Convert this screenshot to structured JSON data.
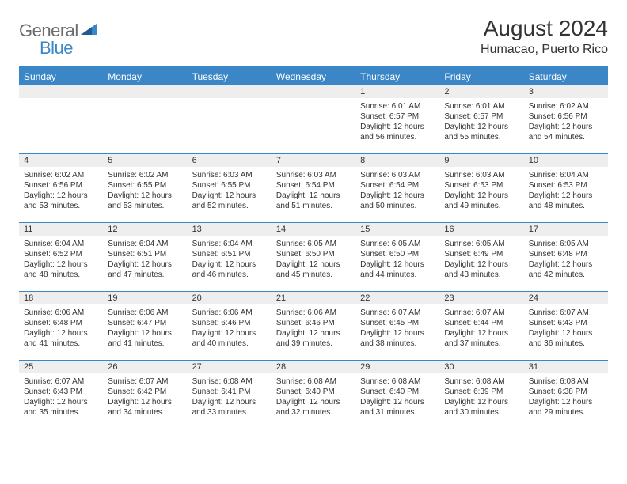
{
  "logo": {
    "text1": "General",
    "text2": "Blue"
  },
  "title": "August 2024",
  "location": "Humacao, Puerto Rico",
  "colors": {
    "accent": "#3b86c6",
    "header_text": "#ffffff",
    "daynum_bg": "#eeeeee",
    "text": "#333333",
    "logo_gray": "#6c6c6c",
    "background": "#ffffff"
  },
  "weekdays": [
    "Sunday",
    "Monday",
    "Tuesday",
    "Wednesday",
    "Thursday",
    "Friday",
    "Saturday"
  ],
  "weeks": [
    [
      {
        "blank": true
      },
      {
        "blank": true
      },
      {
        "blank": true
      },
      {
        "blank": true
      },
      {
        "day": "1",
        "sunrise": "6:01 AM",
        "sunset": "6:57 PM",
        "daylight": "12 hours and 56 minutes."
      },
      {
        "day": "2",
        "sunrise": "6:01 AM",
        "sunset": "6:57 PM",
        "daylight": "12 hours and 55 minutes."
      },
      {
        "day": "3",
        "sunrise": "6:02 AM",
        "sunset": "6:56 PM",
        "daylight": "12 hours and 54 minutes."
      }
    ],
    [
      {
        "day": "4",
        "sunrise": "6:02 AM",
        "sunset": "6:56 PM",
        "daylight": "12 hours and 53 minutes."
      },
      {
        "day": "5",
        "sunrise": "6:02 AM",
        "sunset": "6:55 PM",
        "daylight": "12 hours and 53 minutes."
      },
      {
        "day": "6",
        "sunrise": "6:03 AM",
        "sunset": "6:55 PM",
        "daylight": "12 hours and 52 minutes."
      },
      {
        "day": "7",
        "sunrise": "6:03 AM",
        "sunset": "6:54 PM",
        "daylight": "12 hours and 51 minutes."
      },
      {
        "day": "8",
        "sunrise": "6:03 AM",
        "sunset": "6:54 PM",
        "daylight": "12 hours and 50 minutes."
      },
      {
        "day": "9",
        "sunrise": "6:03 AM",
        "sunset": "6:53 PM",
        "daylight": "12 hours and 49 minutes."
      },
      {
        "day": "10",
        "sunrise": "6:04 AM",
        "sunset": "6:53 PM",
        "daylight": "12 hours and 48 minutes."
      }
    ],
    [
      {
        "day": "11",
        "sunrise": "6:04 AM",
        "sunset": "6:52 PM",
        "daylight": "12 hours and 48 minutes."
      },
      {
        "day": "12",
        "sunrise": "6:04 AM",
        "sunset": "6:51 PM",
        "daylight": "12 hours and 47 minutes."
      },
      {
        "day": "13",
        "sunrise": "6:04 AM",
        "sunset": "6:51 PM",
        "daylight": "12 hours and 46 minutes."
      },
      {
        "day": "14",
        "sunrise": "6:05 AM",
        "sunset": "6:50 PM",
        "daylight": "12 hours and 45 minutes."
      },
      {
        "day": "15",
        "sunrise": "6:05 AM",
        "sunset": "6:50 PM",
        "daylight": "12 hours and 44 minutes."
      },
      {
        "day": "16",
        "sunrise": "6:05 AM",
        "sunset": "6:49 PM",
        "daylight": "12 hours and 43 minutes."
      },
      {
        "day": "17",
        "sunrise": "6:05 AM",
        "sunset": "6:48 PM",
        "daylight": "12 hours and 42 minutes."
      }
    ],
    [
      {
        "day": "18",
        "sunrise": "6:06 AM",
        "sunset": "6:48 PM",
        "daylight": "12 hours and 41 minutes."
      },
      {
        "day": "19",
        "sunrise": "6:06 AM",
        "sunset": "6:47 PM",
        "daylight": "12 hours and 41 minutes."
      },
      {
        "day": "20",
        "sunrise": "6:06 AM",
        "sunset": "6:46 PM",
        "daylight": "12 hours and 40 minutes."
      },
      {
        "day": "21",
        "sunrise": "6:06 AM",
        "sunset": "6:46 PM",
        "daylight": "12 hours and 39 minutes."
      },
      {
        "day": "22",
        "sunrise": "6:07 AM",
        "sunset": "6:45 PM",
        "daylight": "12 hours and 38 minutes."
      },
      {
        "day": "23",
        "sunrise": "6:07 AM",
        "sunset": "6:44 PM",
        "daylight": "12 hours and 37 minutes."
      },
      {
        "day": "24",
        "sunrise": "6:07 AM",
        "sunset": "6:43 PM",
        "daylight": "12 hours and 36 minutes."
      }
    ],
    [
      {
        "day": "25",
        "sunrise": "6:07 AM",
        "sunset": "6:43 PM",
        "daylight": "12 hours and 35 minutes."
      },
      {
        "day": "26",
        "sunrise": "6:07 AM",
        "sunset": "6:42 PM",
        "daylight": "12 hours and 34 minutes."
      },
      {
        "day": "27",
        "sunrise": "6:08 AM",
        "sunset": "6:41 PM",
        "daylight": "12 hours and 33 minutes."
      },
      {
        "day": "28",
        "sunrise": "6:08 AM",
        "sunset": "6:40 PM",
        "daylight": "12 hours and 32 minutes."
      },
      {
        "day": "29",
        "sunrise": "6:08 AM",
        "sunset": "6:40 PM",
        "daylight": "12 hours and 31 minutes."
      },
      {
        "day": "30",
        "sunrise": "6:08 AM",
        "sunset": "6:39 PM",
        "daylight": "12 hours and 30 minutes."
      },
      {
        "day": "31",
        "sunrise": "6:08 AM",
        "sunset": "6:38 PM",
        "daylight": "12 hours and 29 minutes."
      }
    ]
  ],
  "labels": {
    "sunrise": "Sunrise:",
    "sunset": "Sunset:",
    "daylight": "Daylight:"
  },
  "typography": {
    "month_title_fontsize": 28,
    "location_fontsize": 16,
    "weekday_fontsize": 12,
    "daynum_fontsize": 11,
    "details_fontsize": 10
  }
}
